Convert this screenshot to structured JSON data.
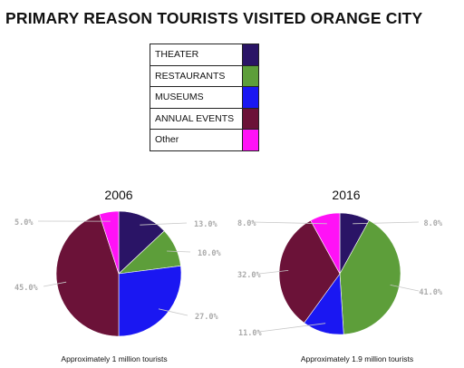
{
  "title": "PRIMARY REASON TOURISTS VISITED ORANGE CITY",
  "legend": [
    {
      "label": "THEATER",
      "color": "#2a1466"
    },
    {
      "label": "RESTAURANTS",
      "color": "#5d9e3a"
    },
    {
      "label": "MUSEUMS",
      "color": "#1a17f2"
    },
    {
      "label": "ANNUAL EVENTS",
      "color": "#6b1238"
    },
    {
      "label": "Other",
      "color": "#ff12f6"
    }
  ],
  "chart_data": [
    {
      "type": "pie",
      "title": "2006",
      "caption": "Approximately 1 million tourists",
      "categories": [
        "THEATER",
        "RESTAURANTS",
        "MUSEUMS",
        "ANNUAL EVENTS",
        "Other"
      ],
      "values": [
        13.0,
        10.0,
        27.0,
        45.0,
        5.0
      ],
      "labels": [
        "13.0%",
        "10.0%",
        "27.0%",
        "45.0%",
        "5.0%"
      ]
    },
    {
      "type": "pie",
      "title": "2016",
      "caption": "Approximately 1.9  million tourists",
      "categories": [
        "THEATER",
        "RESTAURANTS",
        "MUSEUMS",
        "ANNUAL EVENTS",
        "Other"
      ],
      "values": [
        8.0,
        41.0,
        11.0,
        32.0,
        8.0
      ],
      "labels": [
        "8.0%",
        "41.0%",
        "11.0%",
        "32.0%",
        "8.0%"
      ]
    }
  ]
}
